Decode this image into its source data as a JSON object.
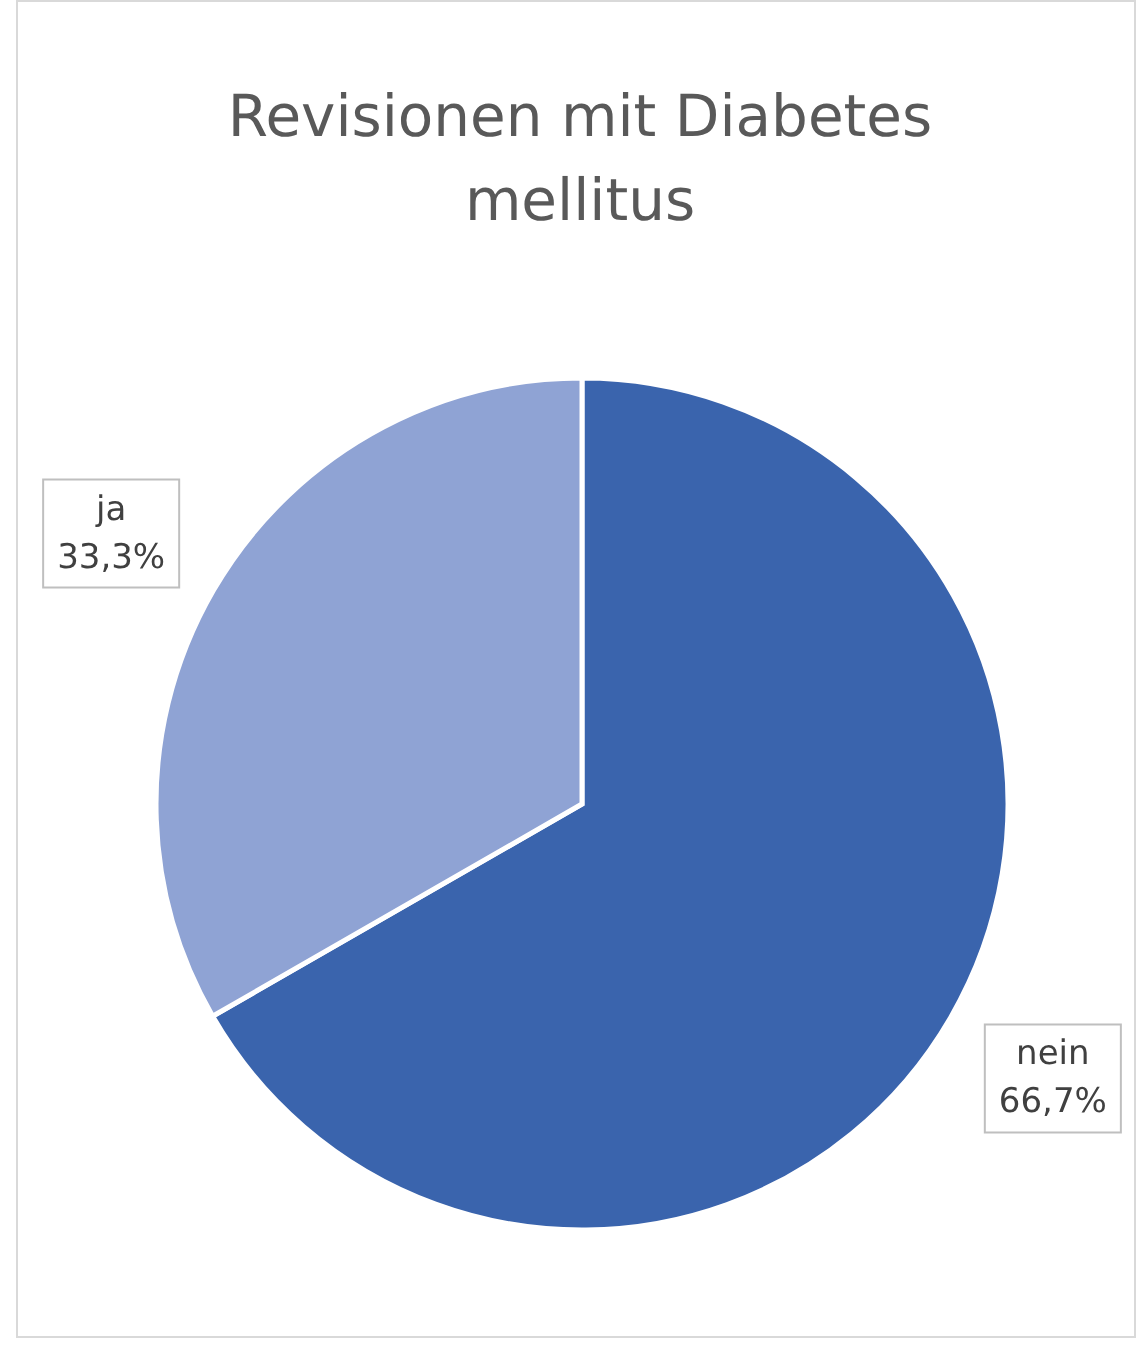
{
  "chart_data": {
    "type": "pie",
    "title": "Revisionen mit Diabetes mellitus",
    "categories": [
      "nein",
      "ja"
    ],
    "values": [
      66.7,
      33.3
    ],
    "colors": [
      "#3a64ad",
      "#8fa3d4"
    ],
    "value_labels": [
      "66,7%",
      "33,3%"
    ]
  }
}
